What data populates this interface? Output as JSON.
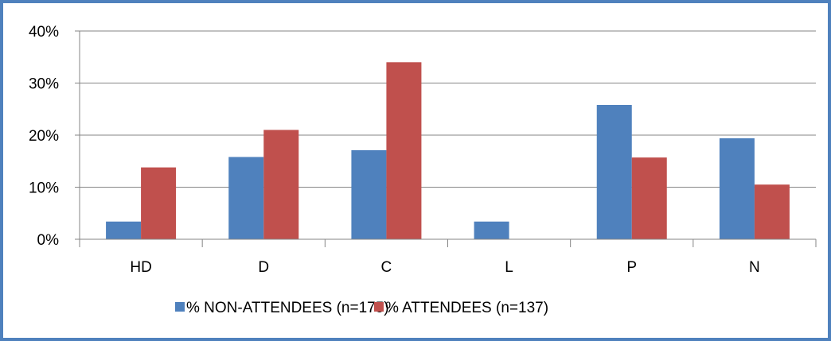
{
  "chart_data": {
    "type": "bar",
    "categories": [
      "HD",
      "D",
      "C",
      "L",
      "P",
      "N"
    ],
    "series": [
      {
        "name": "% NON-ATTENDEES (n=175)",
        "color": "#4f81bd",
        "values": [
          3.4,
          15.8,
          17.1,
          3.4,
          25.8,
          19.4
        ]
      },
      {
        "name": "% ATTENDEES (n=137)",
        "color": "#c0504d",
        "values": [
          13.8,
          21.0,
          34.0,
          0,
          15.7,
          10.5
        ]
      }
    ],
    "yticks": [
      "0%",
      "10%",
      "20%",
      "30%",
      "40%"
    ],
    "ylim": [
      0,
      40
    ],
    "grid": true,
    "legend_position": "bottom"
  }
}
